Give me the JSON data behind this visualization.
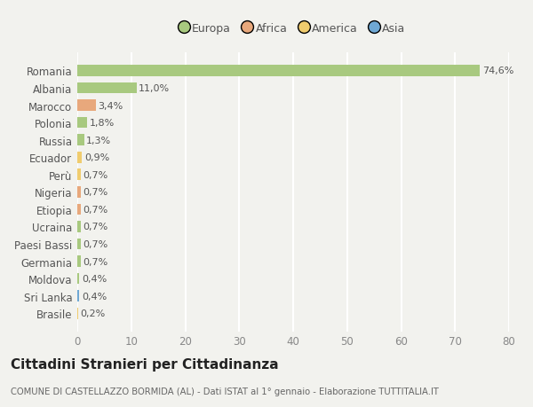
{
  "countries": [
    "Romania",
    "Albania",
    "Marocco",
    "Polonia",
    "Russia",
    "Ecuador",
    "Perù",
    "Nigeria",
    "Etiopia",
    "Ucraina",
    "Paesi Bassi",
    "Germania",
    "Moldova",
    "Sri Lanka",
    "Brasile"
  ],
  "values": [
    74.6,
    11.0,
    3.4,
    1.8,
    1.3,
    0.9,
    0.7,
    0.7,
    0.7,
    0.7,
    0.7,
    0.7,
    0.4,
    0.4,
    0.2
  ],
  "labels": [
    "74,6%",
    "11,0%",
    "3,4%",
    "1,8%",
    "1,3%",
    "0,9%",
    "0,7%",
    "0,7%",
    "0,7%",
    "0,7%",
    "0,7%",
    "0,7%",
    "0,4%",
    "0,4%",
    "0,2%"
  ],
  "continents": [
    "Europa",
    "Europa",
    "Africa",
    "Europa",
    "Europa",
    "America",
    "America",
    "Africa",
    "Africa",
    "Europa",
    "Europa",
    "Europa",
    "Europa",
    "Asia",
    "America"
  ],
  "continent_colors": {
    "Europa": "#a8c97f",
    "Africa": "#e8a87c",
    "America": "#f0cc6e",
    "Asia": "#6fa8d4"
  },
  "legend_order": [
    "Europa",
    "Africa",
    "America",
    "Asia"
  ],
  "background_color": "#f2f2ee",
  "grid_color": "#ffffff",
  "title": "Cittadini Stranieri per Cittadinanza",
  "subtitle": "COMUNE DI CASTELLAZZO BORMIDA (AL) - Dati ISTAT al 1° gennaio - Elaborazione TUTTITALIA.IT",
  "xlim": [
    0,
    80
  ],
  "xticks": [
    0,
    10,
    20,
    30,
    40,
    50,
    60,
    70,
    80
  ]
}
